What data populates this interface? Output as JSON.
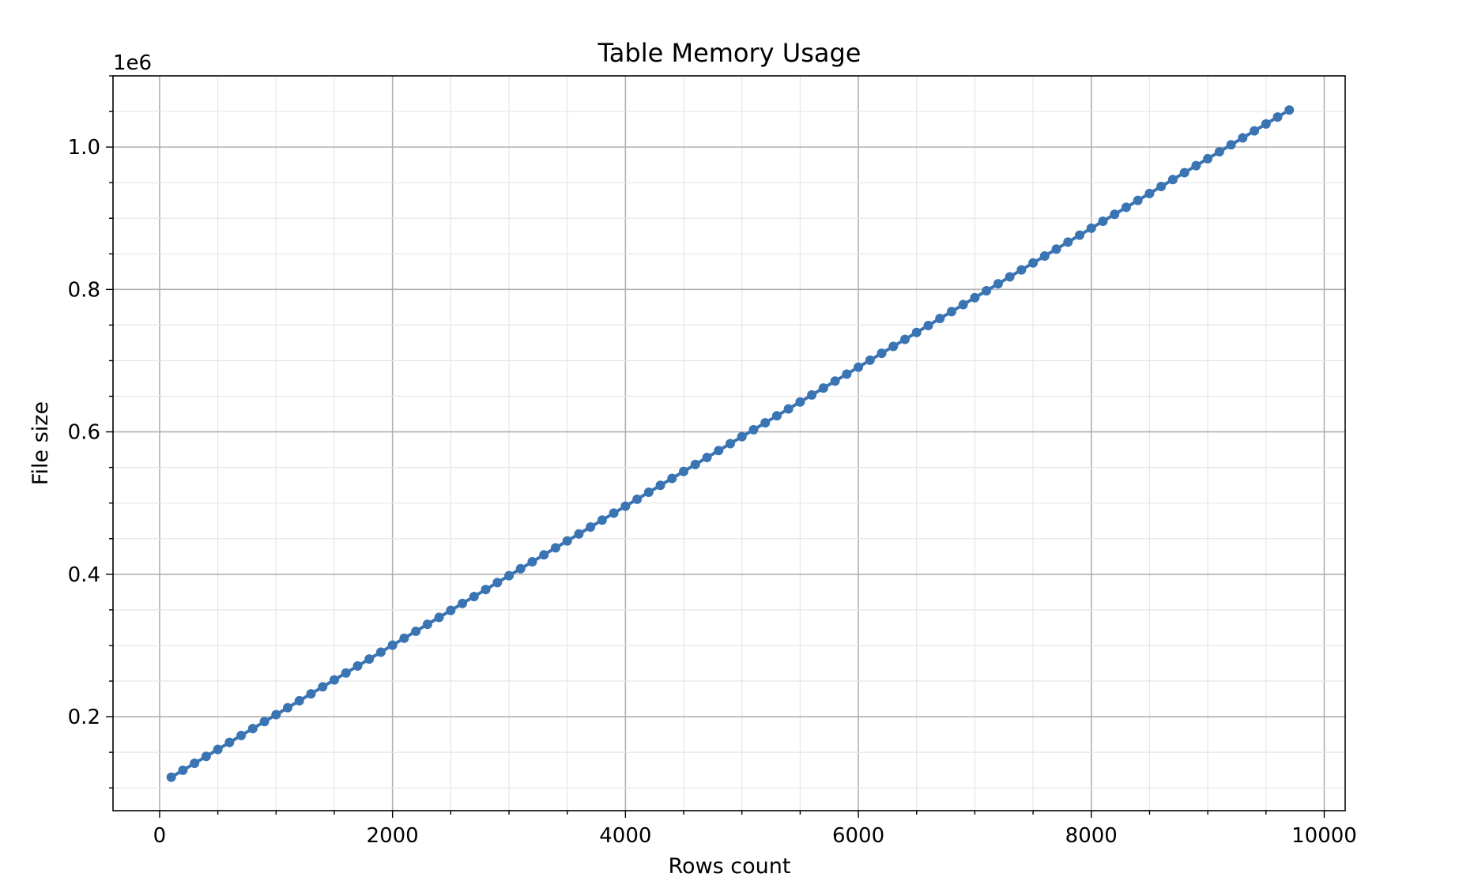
{
  "chart_data": {
    "type": "line",
    "title": "Table Memory Usage",
    "xlabel": "Rows count",
    "ylabel": "File size",
    "y_offset_label": "1e6",
    "xlim": [
      -400,
      10180
    ],
    "ylim": [
      0.068,
      1.1
    ],
    "x_ticks": [
      0,
      2000,
      4000,
      6000,
      8000,
      10000
    ],
    "x_tick_labels": [
      "0",
      "2000",
      "4000",
      "6000",
      "8000",
      "10000"
    ],
    "y_ticks": [
      0.2,
      0.4,
      0.6,
      0.8,
      1.0
    ],
    "y_tick_labels": [
      "0.2",
      "0.4",
      "0.6",
      "0.8",
      "1.0"
    ],
    "x_minor_step": 500,
    "y_minor_step": 0.05,
    "grid": true,
    "marker": "circle",
    "series": [
      {
        "color": "#3a74b3",
        "x_start": 100,
        "x_step": 100,
        "count": 97,
        "y_start": 0.115,
        "y_per_row": 9.76e-05
      }
    ]
  }
}
